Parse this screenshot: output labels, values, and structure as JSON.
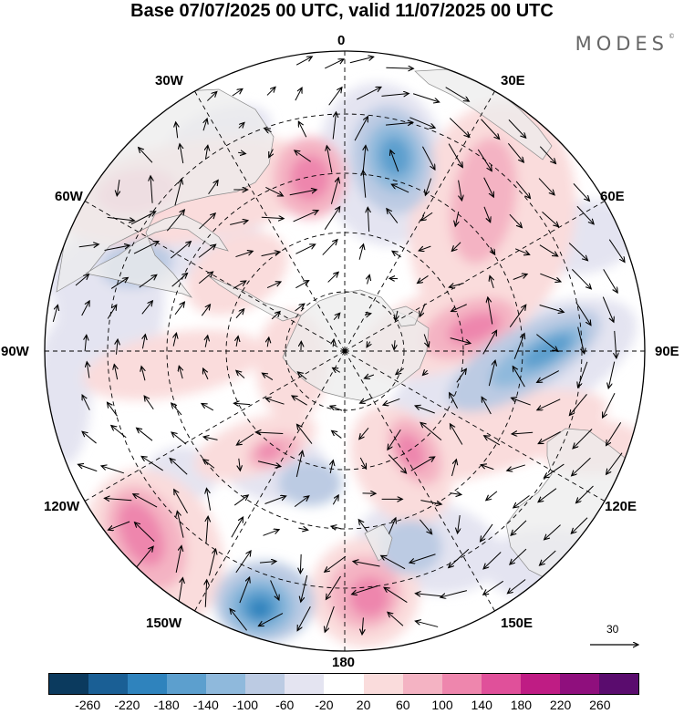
{
  "title": "Base 07/07/2025 00 UTC, valid 11/07/2025 00 UTC",
  "brand": "MODES",
  "brand_mark": "©",
  "lon_labels": {
    "top": "0",
    "top_left": "30W",
    "top_right": "30E",
    "upper_left": "60W",
    "upper_right": "60E",
    "left": "90W",
    "right": "90E",
    "lower_left": "120W",
    "lower_right": "120E",
    "bottom_left": "150W",
    "bottom_right": "150E",
    "bottom": "180"
  },
  "vector_scale_label": "30",
  "colorbar": {
    "colors": [
      "#0b3a5e",
      "#1a5f95",
      "#2f83bd",
      "#5c9fce",
      "#8fb9dc",
      "#bccbe3",
      "#e4e4f1",
      "#ffffff",
      "#fadcdc",
      "#f4b3c3",
      "#ee86ad",
      "#e0509a",
      "#bf1c84",
      "#8f0f7d",
      "#5a0c6e"
    ],
    "ticks": [
      "-260",
      "-220",
      "-180",
      "-140",
      "-100",
      "-60",
      "-20",
      "20",
      "60",
      "100",
      "140",
      "180",
      "220",
      "260"
    ]
  },
  "map_colors": {
    "land": "#ececec",
    "land_edge": "#8a8a8a",
    "neg_light": "#e4e4f1",
    "neg_mid": "#bccbe3",
    "neg_strong": "#8fb9dc",
    "neg_deep": "#5c9fce",
    "neg_core": "#2f83bd",
    "pos_light": "#fadcdc",
    "pos_mid": "#f4b3c3",
    "pos_strong": "#ee86ad"
  }
}
